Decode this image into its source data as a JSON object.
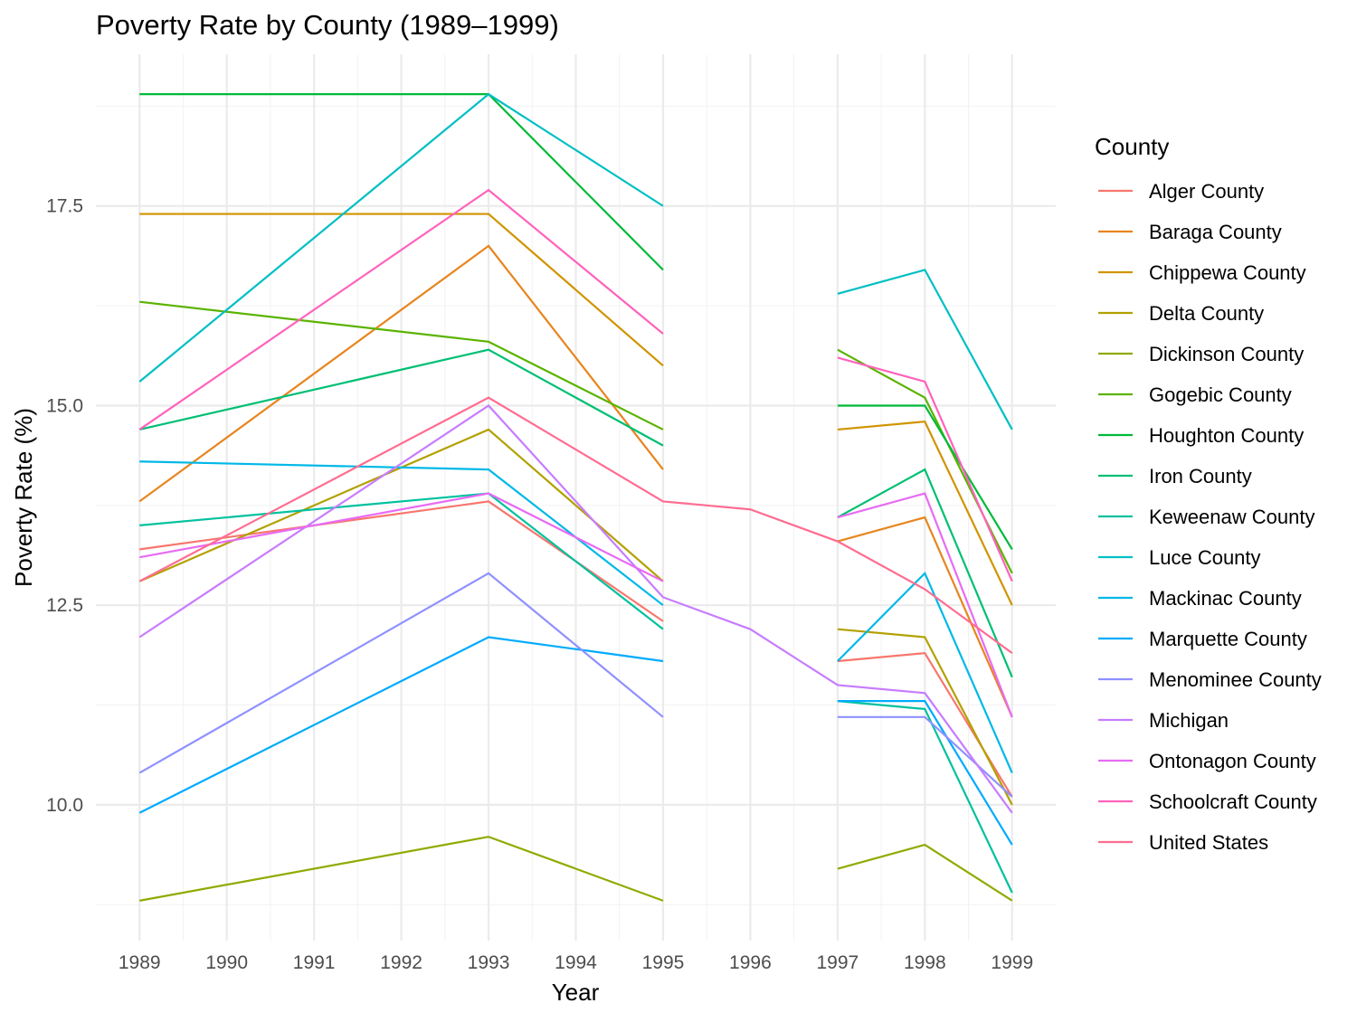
{
  "chart_data": {
    "type": "line",
    "title": "Poverty Rate by County (1989–1999)",
    "xlabel": "Year",
    "ylabel": "Poverty Rate (%)",
    "x_ticks": [
      1989,
      1990,
      1991,
      1992,
      1993,
      1994,
      1995,
      1996,
      1997,
      1998,
      1999
    ],
    "y_ticks": [
      10.0,
      12.5,
      15.0,
      17.5
    ],
    "y_tick_labels": [
      "10.0",
      "12.5",
      "15.0",
      "17.5"
    ],
    "xlim": [
      1988.5,
      1999.5
    ],
    "ylim": [
      8.3,
      19.4
    ],
    "grid": true,
    "legend_title": "County",
    "legend_position": "right",
    "series": [
      {
        "name": "Alger County",
        "color": "#F8766D",
        "points": [
          [
            1989,
            13.2
          ],
          [
            1993,
            13.8
          ],
          [
            1995,
            12.3
          ],
          [
            1997,
            11.8
          ],
          [
            1998,
            11.9
          ],
          [
            1999,
            10.1
          ]
        ]
      },
      {
        "name": "Baraga County",
        "color": "#E7851E",
        "points": [
          [
            1989,
            13.8
          ],
          [
            1993,
            17.0
          ],
          [
            1995,
            14.2
          ],
          [
            1997,
            13.3
          ],
          [
            1998,
            13.6
          ],
          [
            1999,
            11.1
          ]
        ]
      },
      {
        "name": "Chippewa County",
        "color": "#D09400",
        "points": [
          [
            1989,
            17.4
          ],
          [
            1993,
            17.4
          ],
          [
            1995,
            15.5
          ],
          [
            1997,
            14.7
          ],
          [
            1998,
            14.8
          ],
          [
            1999,
            12.5
          ]
        ]
      },
      {
        "name": "Delta County",
        "color": "#B2A100",
        "points": [
          [
            1989,
            12.8
          ],
          [
            1993,
            14.7
          ],
          [
            1995,
            12.8
          ],
          [
            1997,
            12.2
          ],
          [
            1998,
            12.1
          ],
          [
            1999,
            10.0
          ]
        ]
      },
      {
        "name": "Dickinson County",
        "color": "#8EAB00",
        "points": [
          [
            1989,
            8.8
          ],
          [
            1993,
            9.6
          ],
          [
            1995,
            8.8
          ],
          [
            1997,
            9.2
          ],
          [
            1998,
            9.5
          ],
          [
            1999,
            8.8
          ]
        ]
      },
      {
        "name": "Gogebic County",
        "color": "#5BB300",
        "points": [
          [
            1989,
            16.3
          ],
          [
            1993,
            15.8
          ],
          [
            1995,
            14.7
          ],
          [
            1997,
            15.7
          ],
          [
            1998,
            15.1
          ],
          [
            1999,
            12.9
          ]
        ]
      },
      {
        "name": "Houghton County",
        "color": "#00BA38",
        "points": [
          [
            1989,
            18.9
          ],
          [
            1993,
            18.9
          ],
          [
            1995,
            16.7
          ],
          [
            1997,
            15.0
          ],
          [
            1998,
            15.0
          ],
          [
            1999,
            13.2
          ]
        ]
      },
      {
        "name": "Iron County",
        "color": "#00BF74",
        "points": [
          [
            1989,
            14.7
          ],
          [
            1993,
            15.7
          ],
          [
            1995,
            14.5
          ],
          [
            1997,
            13.6
          ],
          [
            1998,
            14.2
          ],
          [
            1999,
            11.6
          ]
        ]
      },
      {
        "name": "Keweenaw County",
        "color": "#00C19F",
        "points": [
          [
            1989,
            13.5
          ],
          [
            1993,
            13.9
          ],
          [
            1995,
            12.2
          ],
          [
            1997,
            11.3
          ],
          [
            1998,
            11.2
          ],
          [
            1999,
            8.9
          ]
        ]
      },
      {
        "name": "Luce County",
        "color": "#00BFC4",
        "points": [
          [
            1989,
            15.3
          ],
          [
            1993,
            18.9
          ],
          [
            1995,
            17.5
          ],
          [
            1997,
            16.4
          ],
          [
            1998,
            16.7
          ],
          [
            1999,
            14.7
          ]
        ]
      },
      {
        "name": "Mackinac County",
        "color": "#00B8E7",
        "points": [
          [
            1989,
            14.3
          ],
          [
            1993,
            14.2
          ],
          [
            1995,
            12.5
          ],
          [
            1997,
            11.8
          ],
          [
            1998,
            12.9
          ],
          [
            1999,
            10.4
          ]
        ]
      },
      {
        "name": "Marquette County",
        "color": "#00ABFD",
        "points": [
          [
            1989,
            9.9
          ],
          [
            1993,
            12.1
          ],
          [
            1995,
            11.8
          ],
          [
            1997,
            11.3
          ],
          [
            1998,
            11.3
          ],
          [
            1999,
            9.5
          ]
        ]
      },
      {
        "name": "Menominee County",
        "color": "#8F91FF",
        "points": [
          [
            1989,
            10.4
          ],
          [
            1993,
            12.9
          ],
          [
            1995,
            11.1
          ],
          [
            1997,
            11.1
          ],
          [
            1998,
            11.1
          ],
          [
            1999,
            10.1
          ]
        ]
      },
      {
        "name": "Michigan",
        "color": "#C77CFF",
        "points": [
          [
            1989,
            12.1
          ],
          [
            1993,
            15.0
          ],
          [
            1995,
            12.6
          ],
          [
            1996,
            12.2
          ],
          [
            1997,
            11.5
          ],
          [
            1998,
            11.4
          ],
          [
            1999,
            9.9
          ]
        ]
      },
      {
        "name": "Ontonagon County",
        "color": "#E76BF3",
        "points": [
          [
            1989,
            13.1
          ],
          [
            1993,
            13.9
          ],
          [
            1995,
            12.8
          ],
          [
            1997,
            13.6
          ],
          [
            1998,
            13.9
          ],
          [
            1999,
            11.1
          ]
        ]
      },
      {
        "name": "Schoolcraft County",
        "color": "#FF62BC",
        "points": [
          [
            1989,
            14.7
          ],
          [
            1993,
            17.7
          ],
          [
            1995,
            15.9
          ],
          [
            1997,
            15.6
          ],
          [
            1998,
            15.3
          ],
          [
            1999,
            12.8
          ]
        ]
      },
      {
        "name": "United States",
        "color": "#FF6C91",
        "points": [
          [
            1989,
            12.8
          ],
          [
            1993,
            15.1
          ],
          [
            1995,
            13.8
          ],
          [
            1996,
            13.7
          ],
          [
            1997,
            13.3
          ],
          [
            1998,
            12.7
          ],
          [
            1999,
            11.9
          ]
        ]
      }
    ]
  }
}
